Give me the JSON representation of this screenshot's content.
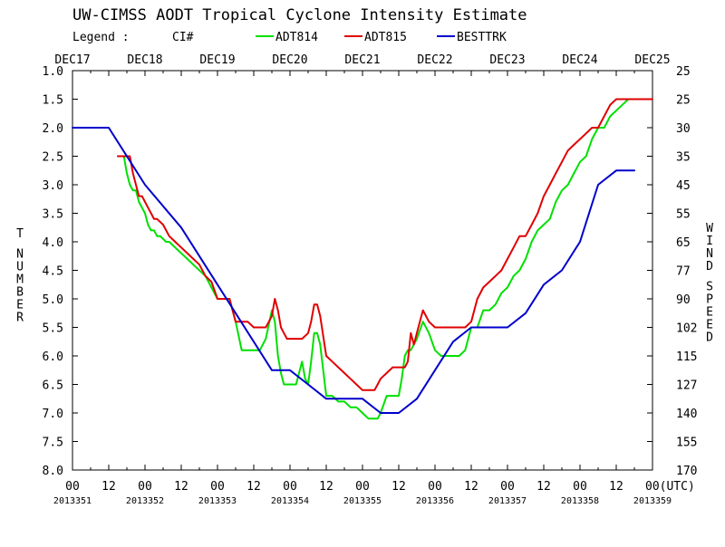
{
  "chart_data": {
    "type": "line",
    "title": "UW-CIMSS AODT Tropical Cyclone Intensity Estimate",
    "legend": {
      "prefix": "Legend :",
      "metric": "CI#",
      "entries": [
        {
          "name": "ADT814",
          "color": "#00e000"
        },
        {
          "name": "ADT815",
          "color": "#e00000"
        },
        {
          "name": "BESTTRK",
          "color": "#0000cc"
        }
      ]
    },
    "top_dates": [
      "DEC17",
      "DEC18",
      "DEC19",
      "DEC20",
      "DEC21",
      "DEC22",
      "DEC23",
      "DEC24",
      "DEC25"
    ],
    "x_hour_labels": [
      "00",
      "12",
      "00",
      "12",
      "00",
      "12",
      "00",
      "12",
      "00",
      "12",
      "00",
      "12",
      "00",
      "12",
      "00",
      "12",
      "00(UTC)"
    ],
    "julian_labels": [
      "2013351",
      "2013352",
      "2013353",
      "2013354",
      "2013355",
      "2013356",
      "2013357",
      "2013358",
      "2013359"
    ],
    "xlim": [
      0,
      192
    ],
    "ylabel_left": "T NUMBER",
    "ylabel_right": "WIND SPEED",
    "y_left_ticks": [
      "1.0",
      "1.5",
      "2.0",
      "2.5",
      "3.0",
      "3.5",
      "4.0",
      "4.5",
      "5.0",
      "5.5",
      "6.0",
      "6.5",
      "7.0",
      "7.5",
      "8.0"
    ],
    "y_right_ticks": [
      "25",
      "25",
      "30",
      "35",
      "45",
      "55",
      "65",
      "77",
      "90",
      "102",
      "115",
      "127",
      "140",
      "155",
      "170"
    ],
    "ylim": [
      1.0,
      8.0
    ],
    "y_inverted": true,
    "series": [
      {
        "name": "ADT814",
        "color": "#00e000",
        "x": [
          15,
          17,
          18,
          19,
          20,
          21,
          22,
          24,
          25,
          26,
          27,
          28,
          29,
          31,
          32,
          34,
          36,
          38,
          40,
          42,
          44,
          46,
          48,
          50,
          52,
          54,
          56,
          57,
          58,
          60,
          62,
          64,
          66,
          67,
          68,
          69,
          70,
          71,
          72,
          74,
          76,
          77,
          78,
          79,
          80,
          81,
          82,
          84,
          86,
          88,
          90,
          92,
          94,
          96,
          98,
          100,
          101,
          102,
          104,
          106,
          108,
          109,
          110,
          111,
          112,
          114,
          116,
          118,
          120,
          122,
          124,
          126,
          128,
          130,
          132,
          134,
          136,
          138,
          140,
          141,
          142,
          144,
          146,
          148,
          150,
          152,
          154,
          156,
          158,
          160,
          162,
          164,
          166,
          168,
          170,
          172,
          174,
          176,
          178,
          180,
          182,
          184,
          186,
          188,
          189
        ],
        "y": [
          2.5,
          2.5,
          2.8,
          3.0,
          3.1,
          3.1,
          3.3,
          3.5,
          3.7,
          3.8,
          3.8,
          3.9,
          3.9,
          4.0,
          4.0,
          4.1,
          4.2,
          4.3,
          4.4,
          4.5,
          4.6,
          4.8,
          5.0,
          5.0,
          5.0,
          5.4,
          5.9,
          5.9,
          5.9,
          5.9,
          5.9,
          5.7,
          5.2,
          5.4,
          6.0,
          6.3,
          6.5,
          6.5,
          6.5,
          6.5,
          6.1,
          6.4,
          6.5,
          6.1,
          5.6,
          5.6,
          5.8,
          6.7,
          6.7,
          6.8,
          6.8,
          6.9,
          6.9,
          7.0,
          7.1,
          7.1,
          7.1,
          7.0,
          6.7,
          6.7,
          6.7,
          6.4,
          6.0,
          5.9,
          5.9,
          5.7,
          5.4,
          5.6,
          5.9,
          6.0,
          6.0,
          6.0,
          6.0,
          5.9,
          5.5,
          5.5,
          5.2,
          5.2,
          5.1,
          5.0,
          4.9,
          4.8,
          4.6,
          4.5,
          4.3,
          4.0,
          3.8,
          3.7,
          3.6,
          3.3,
          3.1,
          3.0,
          2.8,
          2.6,
          2.5,
          2.2,
          2.0,
          2.0,
          1.8,
          1.7,
          1.6,
          1.5,
          1.5,
          1.5,
          1.5
        ]
      },
      {
        "name": "ADT815",
        "color": "#e00000",
        "x": [
          15,
          17,
          19,
          20,
          21,
          22,
          23,
          24,
          25,
          26,
          27,
          28,
          30,
          32,
          34,
          36,
          38,
          40,
          42,
          44,
          46,
          48,
          50,
          52,
          54,
          56,
          58,
          60,
          62,
          64,
          65,
          66,
          67,
          68,
          69,
          70,
          71,
          72,
          74,
          76,
          78,
          79,
          80,
          81,
          82,
          84,
          86,
          88,
          90,
          92,
          94,
          96,
          98,
          100,
          101,
          102,
          104,
          106,
          108,
          110,
          111,
          112,
          113,
          114,
          115,
          116,
          118,
          120,
          122,
          124,
          126,
          128,
          130,
          132,
          134,
          136,
          138,
          140,
          142,
          144,
          146,
          148,
          150,
          152,
          154,
          156,
          158,
          160,
          162,
          164,
          166,
          168,
          170,
          172,
          174,
          176,
          178,
          180,
          182,
          184,
          186,
          188,
          189,
          190,
          192
        ],
        "y": [
          2.5,
          2.5,
          2.5,
          2.8,
          3.0,
          3.2,
          3.2,
          3.3,
          3.4,
          3.5,
          3.6,
          3.6,
          3.7,
          3.9,
          4.0,
          4.1,
          4.2,
          4.3,
          4.4,
          4.6,
          4.7,
          5.0,
          5.0,
          5.0,
          5.4,
          5.4,
          5.4,
          5.5,
          5.5,
          5.5,
          5.4,
          5.3,
          5.0,
          5.2,
          5.5,
          5.6,
          5.7,
          5.7,
          5.7,
          5.7,
          5.6,
          5.4,
          5.1,
          5.1,
          5.3,
          6.0,
          6.1,
          6.2,
          6.3,
          6.4,
          6.5,
          6.6,
          6.6,
          6.6,
          6.5,
          6.4,
          6.3,
          6.2,
          6.2,
          6.2,
          6.1,
          5.6,
          5.8,
          5.6,
          5.4,
          5.2,
          5.4,
          5.5,
          5.5,
          5.5,
          5.5,
          5.5,
          5.5,
          5.4,
          5.0,
          4.8,
          4.7,
          4.6,
          4.5,
          4.3,
          4.1,
          3.9,
          3.9,
          3.7,
          3.5,
          3.2,
          3.0,
          2.8,
          2.6,
          2.4,
          2.3,
          2.2,
          2.1,
          2.0,
          2.0,
          1.8,
          1.6,
          1.5,
          1.5,
          1.5,
          1.5,
          1.5,
          1.5,
          1.5,
          1.5
        ]
      },
      {
        "name": "BESTTRK",
        "color": "#0000cc",
        "x": [
          0,
          12,
          24,
          36,
          42,
          48,
          54,
          60,
          66,
          72,
          78,
          84,
          90,
          96,
          102,
          108,
          114,
          120,
          126,
          132,
          138,
          144,
          150,
          156,
          162,
          168,
          174,
          180,
          186
        ],
        "y": [
          2.0,
          2.0,
          3.0,
          3.75,
          4.25,
          4.75,
          5.25,
          5.75,
          6.25,
          6.25,
          6.5,
          6.75,
          6.75,
          6.75,
          7.0,
          7.0,
          6.75,
          6.25,
          5.75,
          5.5,
          5.5,
          5.5,
          5.25,
          4.75,
          4.5,
          4.0,
          3.0,
          2.75,
          2.75
        ]
      }
    ]
  }
}
